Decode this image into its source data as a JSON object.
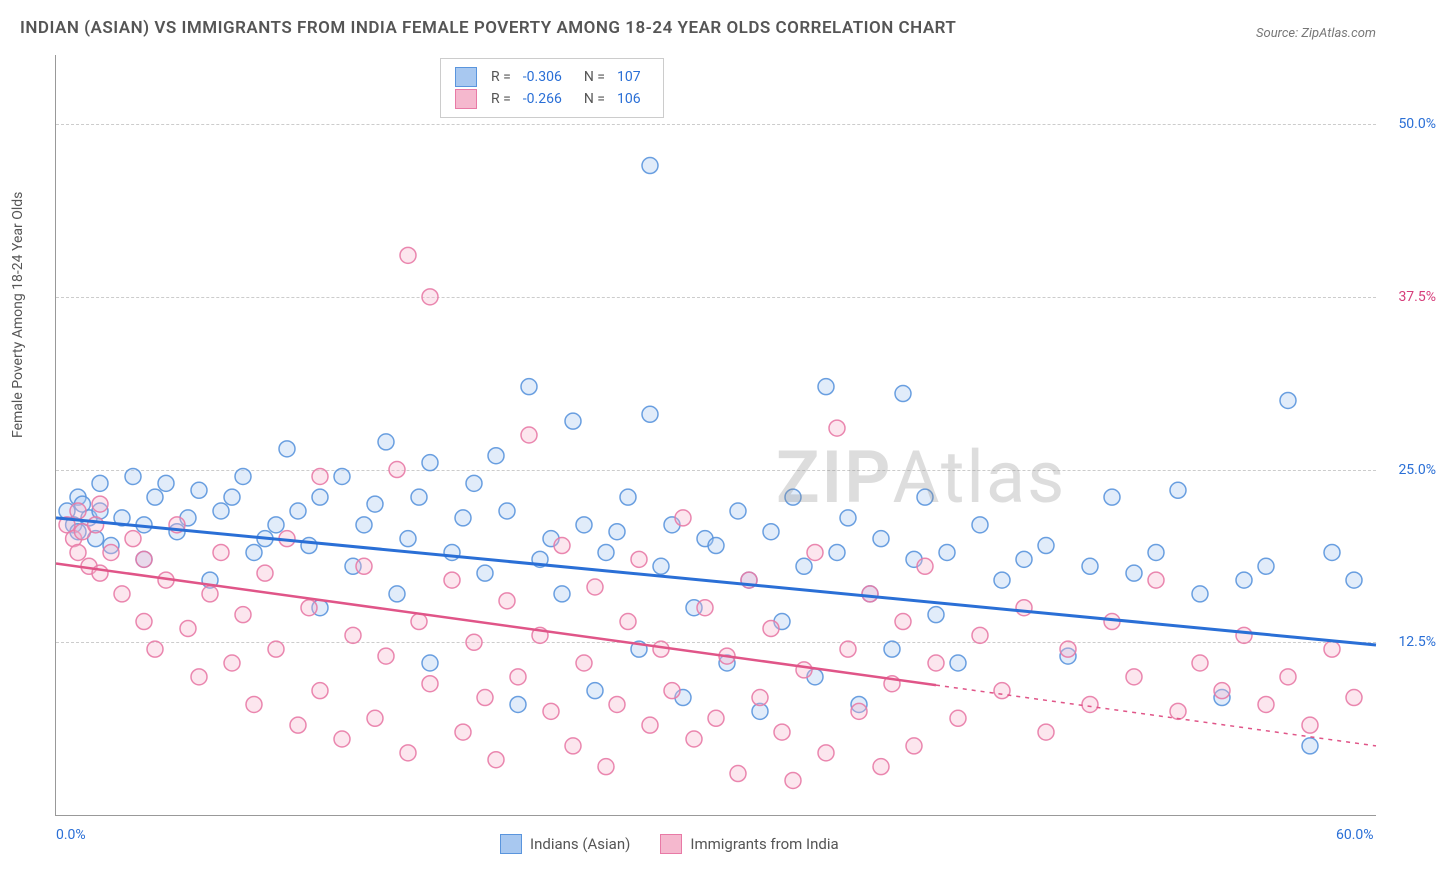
{
  "title": "INDIAN (ASIAN) VS IMMIGRANTS FROM INDIA FEMALE POVERTY AMONG 18-24 YEAR OLDS CORRELATION CHART",
  "source": "Source: ZipAtlas.com",
  "watermark_a": "ZIP",
  "watermark_b": "Atlas",
  "y_axis_label": "Female Poverty Among 18-24 Year Olds",
  "chart": {
    "type": "scatter",
    "xlim": [
      0,
      60
    ],
    "ylim": [
      0,
      55
    ],
    "x_ticks": [
      {
        "value": 0,
        "label": "0.0%",
        "color": "#2a6fd6"
      },
      {
        "value": 60,
        "label": "60.0%",
        "color": "#2a6fd6"
      }
    ],
    "y_ticks": [
      {
        "value": 12.5,
        "label": "12.5%",
        "color": "#2a6fd6"
      },
      {
        "value": 25.0,
        "label": "25.0%",
        "color": "#2a6fd6"
      },
      {
        "value": 37.5,
        "label": "37.5%",
        "color": "#d63d7a"
      },
      {
        "value": 50.0,
        "label": "50.0%",
        "color": "#2a6fd6"
      }
    ],
    "grid_color": "#cccccc",
    "background_color": "#ffffff",
    "marker_radius": 8,
    "marker_fill_opacity": 0.35,
    "marker_stroke_opacity": 0.9,
    "series": [
      {
        "name": "Indians (Asian)",
        "color_fill": "#a8c8f0",
        "color_stroke": "#5a95dd",
        "R": "-0.306",
        "N": "107",
        "trend": {
          "x1": 0,
          "y1": 21.5,
          "x2": 60,
          "y2": 12.3,
          "color": "#2a6fd6",
          "width": 3,
          "solid_until_x": 60
        },
        "points": [
          [
            0.5,
            22
          ],
          [
            0.8,
            21
          ],
          [
            1,
            23
          ],
          [
            1,
            20.5
          ],
          [
            1.2,
            22.5
          ],
          [
            1.5,
            21.5
          ],
          [
            1.8,
            20
          ],
          [
            2,
            22
          ],
          [
            2,
            24
          ],
          [
            2.5,
            19.5
          ],
          [
            3,
            21.5
          ],
          [
            3.5,
            24.5
          ],
          [
            4,
            21
          ],
          [
            4,
            18.5
          ],
          [
            4.5,
            23
          ],
          [
            5,
            24
          ],
          [
            5.5,
            20.5
          ],
          [
            6,
            21.5
          ],
          [
            6.5,
            23.5
          ],
          [
            7,
            17
          ],
          [
            7.5,
            22
          ],
          [
            8,
            23
          ],
          [
            8.5,
            24.5
          ],
          [
            9,
            19
          ],
          [
            9.5,
            20
          ],
          [
            10,
            21
          ],
          [
            10.5,
            26.5
          ],
          [
            11,
            22
          ],
          [
            11.5,
            19.5
          ],
          [
            12,
            23
          ],
          [
            12,
            15
          ],
          [
            13,
            24.5
          ],
          [
            13.5,
            18
          ],
          [
            14,
            21
          ],
          [
            14.5,
            22.5
          ],
          [
            15,
            27
          ],
          [
            15.5,
            16
          ],
          [
            16,
            20
          ],
          [
            16.5,
            23
          ],
          [
            17,
            25.5
          ],
          [
            17,
            11
          ],
          [
            18,
            19
          ],
          [
            18.5,
            21.5
          ],
          [
            19,
            24
          ],
          [
            19.5,
            17.5
          ],
          [
            20,
            26
          ],
          [
            20.5,
            22
          ],
          [
            21,
            8
          ],
          [
            21.5,
            31
          ],
          [
            22,
            18.5
          ],
          [
            22.5,
            20
          ],
          [
            23,
            16
          ],
          [
            23.5,
            28.5
          ],
          [
            24,
            21
          ],
          [
            24.5,
            9
          ],
          [
            25,
            19
          ],
          [
            25.5,
            20.5
          ],
          [
            26,
            23
          ],
          [
            26.5,
            12
          ],
          [
            27,
            29
          ],
          [
            27.5,
            18
          ],
          [
            27,
            47
          ],
          [
            28,
            21
          ],
          [
            28.5,
            8.5
          ],
          [
            29,
            15
          ],
          [
            29.5,
            20
          ],
          [
            30,
            19.5
          ],
          [
            30.5,
            11
          ],
          [
            31,
            22
          ],
          [
            31.5,
            17
          ],
          [
            32,
            7.5
          ],
          [
            32.5,
            20.5
          ],
          [
            33,
            14
          ],
          [
            33.5,
            23
          ],
          [
            34,
            18
          ],
          [
            34.5,
            10
          ],
          [
            35,
            31
          ],
          [
            35.5,
            19
          ],
          [
            36,
            21.5
          ],
          [
            36.5,
            8
          ],
          [
            37,
            16
          ],
          [
            37.5,
            20
          ],
          [
            38,
            12
          ],
          [
            38.5,
            30.5
          ],
          [
            39,
            18.5
          ],
          [
            39.5,
            23
          ],
          [
            40,
            14.5
          ],
          [
            40.5,
            19
          ],
          [
            41,
            11
          ],
          [
            42,
            21
          ],
          [
            43,
            17
          ],
          [
            44,
            18.5
          ],
          [
            45,
            19.5
          ],
          [
            46,
            11.5
          ],
          [
            47,
            18
          ],
          [
            48,
            23
          ],
          [
            49,
            17.5
          ],
          [
            50,
            19
          ],
          [
            51,
            23.5
          ],
          [
            52,
            16
          ],
          [
            53,
            8.5
          ],
          [
            54,
            17
          ],
          [
            55,
            18
          ],
          [
            56,
            30
          ],
          [
            57,
            5
          ],
          [
            58,
            19
          ],
          [
            59,
            17
          ]
        ]
      },
      {
        "name": "Immigrants from India",
        "color_fill": "#f5b8ce",
        "color_stroke": "#e87aa6",
        "R": "-0.266",
        "N": "106",
        "trend": {
          "x1": 0,
          "y1": 18.2,
          "x2": 60,
          "y2": 5.0,
          "color": "#e05588",
          "width": 2.5,
          "solid_until_x": 40
        },
        "points": [
          [
            0.5,
            21
          ],
          [
            0.8,
            20
          ],
          [
            1,
            22
          ],
          [
            1,
            19
          ],
          [
            1.2,
            20.5
          ],
          [
            1.5,
            18
          ],
          [
            1.8,
            21
          ],
          [
            2,
            17.5
          ],
          [
            2,
            22.5
          ],
          [
            2.5,
            19
          ],
          [
            3,
            16
          ],
          [
            3.5,
            20
          ],
          [
            4,
            14
          ],
          [
            4,
            18.5
          ],
          [
            4.5,
            12
          ],
          [
            5,
            17
          ],
          [
            5.5,
            21
          ],
          [
            6,
            13.5
          ],
          [
            6.5,
            10
          ],
          [
            7,
            16
          ],
          [
            7.5,
            19
          ],
          [
            8,
            11
          ],
          [
            8.5,
            14.5
          ],
          [
            9,
            8
          ],
          [
            9.5,
            17.5
          ],
          [
            10,
            12
          ],
          [
            10.5,
            20
          ],
          [
            11,
            6.5
          ],
          [
            11.5,
            15
          ],
          [
            12,
            9
          ],
          [
            12,
            24.5
          ],
          [
            13,
            5.5
          ],
          [
            13.5,
            13
          ],
          [
            14,
            18
          ],
          [
            14.5,
            7
          ],
          [
            15,
            11.5
          ],
          [
            15.5,
            25
          ],
          [
            16,
            4.5
          ],
          [
            16,
            40.5
          ],
          [
            16.5,
            14
          ],
          [
            17,
            37.5
          ],
          [
            17,
            9.5
          ],
          [
            18,
            17
          ],
          [
            18.5,
            6
          ],
          [
            19,
            12.5
          ],
          [
            19.5,
            8.5
          ],
          [
            20,
            4
          ],
          [
            20.5,
            15.5
          ],
          [
            21,
            10
          ],
          [
            21.5,
            27.5
          ],
          [
            22,
            13
          ],
          [
            22.5,
            7.5
          ],
          [
            23,
            19.5
          ],
          [
            23.5,
            5
          ],
          [
            24,
            11
          ],
          [
            24.5,
            16.5
          ],
          [
            25,
            3.5
          ],
          [
            25.5,
            8
          ],
          [
            26,
            14
          ],
          [
            26.5,
            18.5
          ],
          [
            27,
            6.5
          ],
          [
            27.5,
            12
          ],
          [
            28,
            9
          ],
          [
            28.5,
            21.5
          ],
          [
            29,
            5.5
          ],
          [
            29.5,
            15
          ],
          [
            30,
            7
          ],
          [
            30.5,
            11.5
          ],
          [
            31,
            3
          ],
          [
            31.5,
            17
          ],
          [
            32,
            8.5
          ],
          [
            32.5,
            13.5
          ],
          [
            33,
            6
          ],
          [
            33.5,
            2.5
          ],
          [
            34,
            10.5
          ],
          [
            34.5,
            19
          ],
          [
            35,
            4.5
          ],
          [
            35.5,
            28
          ],
          [
            36,
            12
          ],
          [
            36.5,
            7.5
          ],
          [
            37,
            16
          ],
          [
            37.5,
            3.5
          ],
          [
            38,
            9.5
          ],
          [
            38.5,
            14
          ],
          [
            39,
            5
          ],
          [
            39.5,
            18
          ],
          [
            40,
            11
          ],
          [
            41,
            7
          ],
          [
            42,
            13
          ],
          [
            43,
            9
          ],
          [
            44,
            15
          ],
          [
            45,
            6
          ],
          [
            46,
            12
          ],
          [
            47,
            8
          ],
          [
            48,
            14
          ],
          [
            49,
            10
          ],
          [
            50,
            17
          ],
          [
            51,
            7.5
          ],
          [
            52,
            11
          ],
          [
            53,
            9
          ],
          [
            54,
            13
          ],
          [
            55,
            8
          ],
          [
            56,
            10
          ],
          [
            57,
            6.5
          ],
          [
            58,
            12
          ],
          [
            59,
            8.5
          ]
        ]
      }
    ]
  },
  "bottom_legend": [
    {
      "label": "Indians (Asian)",
      "fill": "#a8c8f0",
      "stroke": "#5a95dd"
    },
    {
      "label": "Immigrants from India",
      "fill": "#f5b8ce",
      "stroke": "#e87aa6"
    }
  ]
}
